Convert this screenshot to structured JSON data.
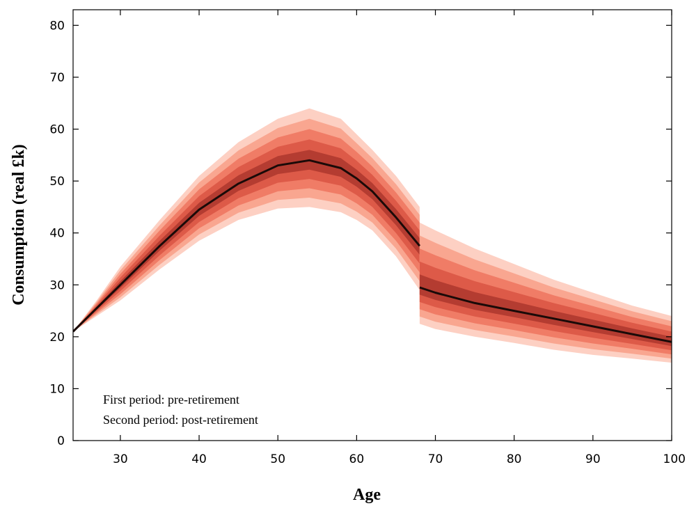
{
  "chart_data": {
    "type": "area",
    "xlabel": "Age",
    "ylabel": "Consumption (real £k)",
    "xlim": [
      24,
      100
    ],
    "ylim": [
      0,
      83
    ],
    "xticks": [
      30,
      40,
      50,
      60,
      70,
      80,
      90,
      100
    ],
    "yticks": [
      0,
      10,
      20,
      30,
      40,
      50,
      60,
      70,
      80
    ],
    "grid": false,
    "annotations": [
      "First period: pre-retirement",
      "Second period: post-retirement"
    ],
    "band_colors": [
      "#fdd0c3",
      "#f9a690",
      "#f07c66",
      "#dd5a48",
      "#b43c31"
    ],
    "median_color": "#1a0a08",
    "series": [
      {
        "x": [
          24,
          27,
          30,
          35,
          40,
          45,
          50,
          54,
          58,
          60,
          62,
          65,
          68
        ],
        "median": [
          21,
          25.5,
          30,
          37.5,
          44.5,
          49.5,
          53,
          54,
          52.5,
          50.5,
          48,
          43,
          37.5
        ],
        "p5": [
          21,
          24,
          27,
          33,
          38.5,
          42.5,
          44.7,
          45,
          44,
          42.5,
          40.5,
          35.5,
          29
        ],
        "p95": [
          21,
          27,
          33.5,
          42.5,
          51,
          57.5,
          62,
          64,
          62,
          59,
          56,
          51,
          45
        ],
        "p20": [
          21,
          24.8,
          28.8,
          35.5,
          41.5,
          46,
          49,
          49.8,
          48.3,
          46.5,
          44.2,
          39.3,
          33.2
        ],
        "p80": [
          21,
          26.3,
          31.5,
          39.8,
          47.8,
          53.3,
          57,
          58.5,
          56.8,
          54.5,
          51.8,
          46.8,
          41.5
        ]
      },
      {
        "x": [
          68,
          70,
          75,
          80,
          85,
          90,
          95,
          100
        ],
        "median": [
          29.5,
          28.5,
          26.5,
          25,
          23.5,
          22,
          20.5,
          19
        ],
        "p5": [
          22.5,
          21.5,
          20,
          18.8,
          17.5,
          16.5,
          15.8,
          15
        ],
        "p95": [
          42,
          40.5,
          37,
          34,
          31,
          28.5,
          26,
          24
        ],
        "p20": [
          26,
          25,
          23.2,
          21.9,
          20.5,
          19.2,
          18.2,
          17
        ],
        "p80": [
          35.8,
          34.5,
          31.8,
          29.5,
          27.3,
          25.3,
          23.3,
          21.5
        ]
      }
    ]
  }
}
